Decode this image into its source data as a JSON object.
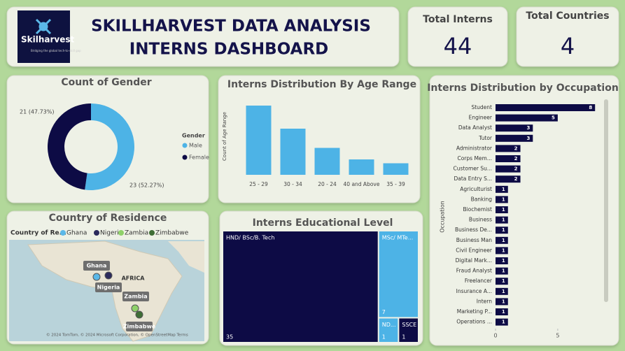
{
  "header": {
    "logo_text": "Skilharvest",
    "logo_tagline": "Bridging the global tech-to-skill gap",
    "title_lines": [
      "SKILLHARVEST DATA ANALYSIS",
      "INTERNS DASHBOARD"
    ]
  },
  "cards": [
    {
      "label": "Total Interns",
      "value": 44
    },
    {
      "label": "Total Countries",
      "value": 4
    }
  ],
  "map": {
    "title": "Country of Residence",
    "legend_title": "Country of Re...",
    "region_label": "AFRICA",
    "attribution": "© 2024 TomTom, © 2024 Microsoft Corporation, © OpenStreetMap  Terms",
    "countries": [
      {
        "name": "Ghana",
        "color": "#5bb8e8"
      },
      {
        "name": "Nigeria",
        "color": "#2b2a5c"
      },
      {
        "name": "Zambia",
        "color": "#8fd16a"
      },
      {
        "name": "Zimbabwe",
        "color": "#3f6e36"
      }
    ]
  },
  "chart_data": [
    {
      "type": "donut",
      "title": "Count of Gender",
      "legend_title": "Gender",
      "categories": [
        "Male",
        "Female"
      ],
      "values": [
        23,
        21
      ],
      "value_labels": [
        "23 (52.27%)",
        "21 (47.73%)"
      ],
      "colors": [
        "#4db3e6",
        "#0d0b45"
      ]
    },
    {
      "type": "bar",
      "title": "Interns Distribution By Age Range",
      "ylabel": "Count of Age Range",
      "categories": [
        "25 - 29",
        "30 - 34",
        "20 - 24",
        "40 and Above",
        "35 - 39"
      ],
      "values": [
        18,
        12,
        7,
        4,
        3
      ],
      "color": "#4db3e6",
      "ylim": [
        0,
        20
      ]
    },
    {
      "type": "hbar",
      "title": "Interns Distribution by Occupation",
      "ylabel": "Occupation",
      "categories": [
        "Student",
        "Engineer",
        "Data Analyst",
        "Tutor",
        "Administrator",
        "Corps Mem...",
        "Customer Su...",
        "Data Entry S...",
        "Agriculturist",
        "Banking",
        "Biochemist",
        "Business",
        "Business De...",
        "Business Man",
        "Civil Engineer",
        "Digital Mark...",
        "Fraud Analyst",
        "Freelancer",
        "Insurance A...",
        "Intern",
        "Marketing P...",
        "Operations ..."
      ],
      "values": [
        8,
        5,
        3,
        3,
        2,
        2,
        2,
        2,
        1,
        1,
        1,
        1,
        1,
        1,
        1,
        1,
        1,
        1,
        1,
        1,
        1,
        1
      ],
      "color": "#0d0b45",
      "xlim": [
        0,
        9
      ],
      "xticks": [
        0,
        5
      ]
    },
    {
      "type": "treemap",
      "title": "Interns Educational Level",
      "categories": [
        "HND/ BSc/B. Tech",
        "MSc/ MTe...",
        "ND...",
        "SSCE"
      ],
      "values": [
        35,
        7,
        1,
        1
      ],
      "colors": [
        "#0d0b45",
        "#4db3e6",
        "#4db3e6",
        "#0d0b45"
      ]
    }
  ]
}
